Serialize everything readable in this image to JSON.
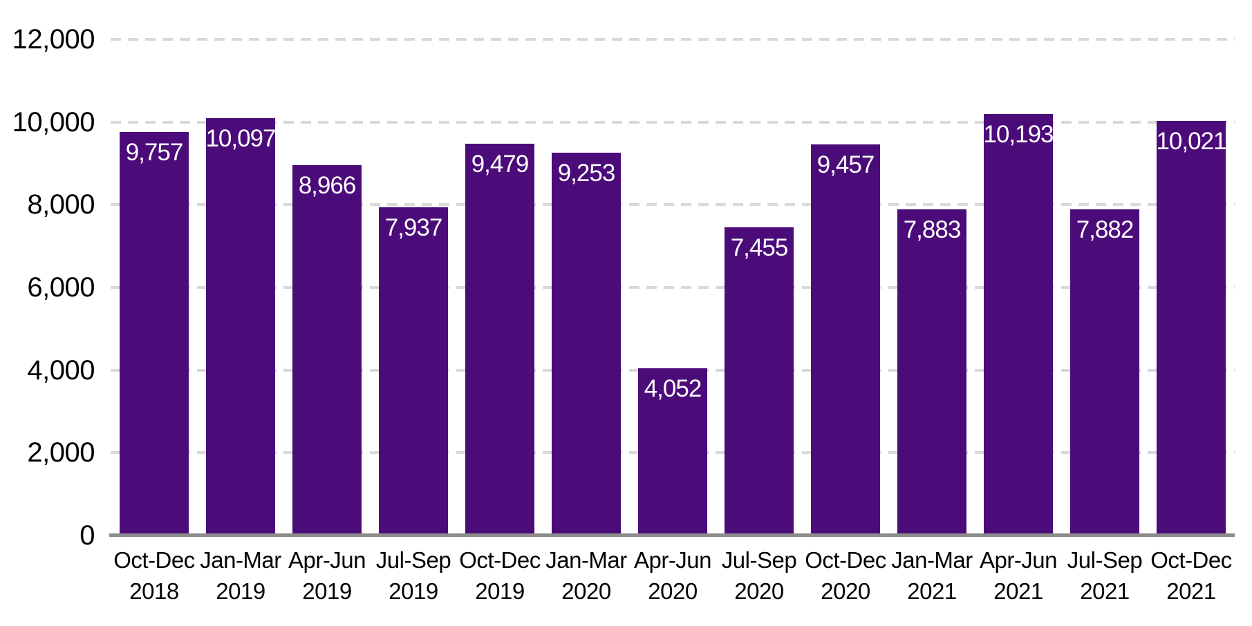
{
  "chart_data": {
    "type": "bar",
    "title": "",
    "xlabel": "",
    "ylabel": "",
    "legend": "none",
    "grid": "horizontal-dashed",
    "ylim": [
      0,
      12000
    ],
    "yticks": [
      {
        "value": 0,
        "label": "0"
      },
      {
        "value": 2000,
        "label": "2,000"
      },
      {
        "value": 4000,
        "label": "4,000"
      },
      {
        "value": 6000,
        "label": "6,000"
      },
      {
        "value": 8000,
        "label": "8,000"
      },
      {
        "value": 10000,
        "label": "10,000"
      },
      {
        "value": 12000,
        "label": "12,000"
      }
    ],
    "categories": [
      {
        "quarter": "Oct-Dec",
        "year": "2018"
      },
      {
        "quarter": "Jan-Mar",
        "year": "2019"
      },
      {
        "quarter": "Apr-Jun",
        "year": "2019"
      },
      {
        "quarter": "Jul-Sep",
        "year": "2019"
      },
      {
        "quarter": "Oct-Dec",
        "year": "2019"
      },
      {
        "quarter": "Jan-Mar",
        "year": "2020"
      },
      {
        "quarter": "Apr-Jun",
        "year": "2020"
      },
      {
        "quarter": "Jul-Sep",
        "year": "2020"
      },
      {
        "quarter": "Oct-Dec",
        "year": "2020"
      },
      {
        "quarter": "Jan-Mar",
        "year": "2021"
      },
      {
        "quarter": "Apr-Jun",
        "year": "2021"
      },
      {
        "quarter": "Jul-Sep",
        "year": "2021"
      },
      {
        "quarter": "Oct-Dec",
        "year": "2021"
      }
    ],
    "values": [
      9757,
      10097,
      8966,
      7937,
      9479,
      9253,
      4052,
      7455,
      9457,
      7883,
      10193,
      7882,
      10021
    ],
    "value_labels": [
      "9,757",
      "10,097",
      "8,966",
      "7,937",
      "9,479",
      "9,253",
      "4,052",
      "7,455",
      "9,457",
      "7,883",
      "10,193",
      "7,882",
      "10,021"
    ],
    "colors": {
      "bar": "#4B0C7A",
      "bar_label_text": "#FFFFFF",
      "gridline": "#D9D9D9",
      "axis_line": "#8C8C8C",
      "tick_text": "#000000",
      "background": "#FFFFFF"
    }
  }
}
